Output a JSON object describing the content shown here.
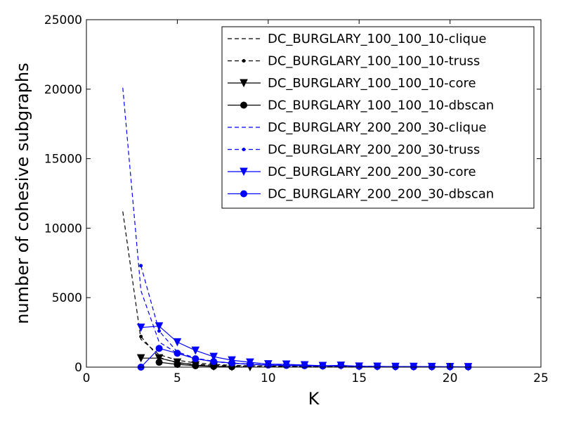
{
  "chart_data": {
    "type": "line",
    "xlabel": "K",
    "ylabel": "number of cohesive subgraphs",
    "xlim": [
      0,
      25
    ],
    "ylim": [
      0,
      25000
    ],
    "xticks": [
      "0",
      "5",
      "10",
      "15",
      "20",
      "25"
    ],
    "yticks": [
      "0",
      "5000",
      "10000",
      "15000",
      "20000",
      "25000"
    ],
    "grid": false,
    "legend_position": "top-right",
    "colors": {
      "black": "#000000",
      "blue": "#0000ff"
    },
    "series": [
      {
        "name": "DC_BURGLARY_100_100_10-clique",
        "color": "#000000",
        "line": "dashed",
        "marker": "none",
        "x": [
          2,
          3,
          4,
          5,
          6,
          7,
          8,
          9,
          10,
          11,
          12,
          13,
          14,
          15,
          16,
          17,
          18,
          19,
          20,
          21
        ],
        "y": [
          11200,
          2000,
          900,
          500,
          300,
          200,
          130,
          100,
          80,
          70,
          60,
          50,
          40,
          35,
          30,
          25,
          20,
          15,
          10,
          5
        ]
      },
      {
        "name": "DC_BURGLARY_100_100_10-truss",
        "color": "#000000",
        "line": "dashed",
        "marker": "small-dot",
        "x": [
          3,
          4,
          5,
          6,
          7,
          8,
          9,
          10,
          11,
          12,
          13,
          14,
          15,
          16,
          17,
          18,
          19,
          20,
          21
        ],
        "y": [
          2200,
          700,
          300,
          200,
          130,
          90,
          70,
          60,
          50,
          40,
          35,
          30,
          25,
          20,
          15,
          12,
          10,
          8,
          5
        ]
      },
      {
        "name": "DC_BURGLARY_100_100_10-core",
        "color": "#000000",
        "line": "solid",
        "marker": "triangle-down",
        "x": [
          3,
          4,
          5,
          6,
          7,
          8,
          9
        ],
        "y": [
          650,
          650,
          350,
          150,
          50,
          20,
          5
        ]
      },
      {
        "name": "DC_BURGLARY_100_100_10-dbscan",
        "color": "#000000",
        "line": "solid",
        "marker": "circle",
        "x": [
          4,
          5,
          6,
          7,
          8
        ],
        "y": [
          350,
          200,
          100,
          60,
          30
        ]
      },
      {
        "name": "DC_BURGLARY_200_200_30-clique",
        "color": "#0000ff",
        "line": "dashed",
        "marker": "none",
        "x": [
          2,
          3,
          4,
          5,
          6,
          7,
          8,
          9,
          10,
          11,
          12,
          13,
          14,
          15,
          16,
          17,
          18,
          19,
          20,
          21
        ],
        "y": [
          20100,
          5500,
          1800,
          1000,
          600,
          400,
          280,
          200,
          160,
          130,
          110,
          90,
          75,
          60,
          50,
          40,
          30,
          25,
          20,
          15
        ]
      },
      {
        "name": "DC_BURGLARY_200_200_30-truss",
        "color": "#0000ff",
        "line": "dashed",
        "marker": "small-dot",
        "x": [
          3,
          4,
          5,
          6,
          7,
          8,
          9,
          10,
          11,
          12,
          13,
          14,
          15,
          16,
          17,
          18,
          19,
          20,
          21
        ],
        "y": [
          7300,
          2600,
          1100,
          650,
          420,
          300,
          220,
          170,
          140,
          110,
          95,
          80,
          65,
          50,
          40,
          30,
          25,
          20,
          10
        ]
      },
      {
        "name": "DC_BURGLARY_200_200_30-core",
        "color": "#0000ff",
        "line": "solid",
        "marker": "triangle-down",
        "x": [
          3,
          4,
          5,
          6,
          7,
          8,
          9,
          10,
          11,
          12,
          13,
          14,
          15,
          16,
          17,
          18,
          19,
          20,
          21
        ],
        "y": [
          2850,
          2950,
          1800,
          1200,
          750,
          500,
          350,
          220,
          200,
          150,
          100,
          120,
          60,
          50,
          40,
          40,
          30,
          25,
          20
        ]
      },
      {
        "name": "DC_BURGLARY_200_200_30-dbscan",
        "color": "#0000ff",
        "line": "solid",
        "marker": "circle",
        "x": [
          3,
          4,
          5,
          6,
          7,
          8,
          9,
          10,
          11,
          12,
          13,
          14,
          15,
          16,
          17,
          18,
          19,
          20,
          21
        ],
        "y": [
          0,
          1350,
          1000,
          600,
          400,
          300,
          200,
          150,
          120,
          100,
          80,
          120,
          60,
          50,
          40,
          30,
          30,
          25,
          20
        ]
      }
    ]
  }
}
